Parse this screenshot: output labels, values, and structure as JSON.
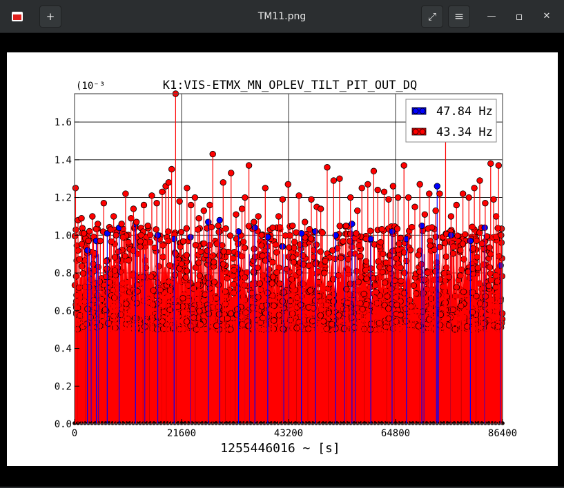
{
  "window": {
    "title": "TM11.png",
    "icons": {
      "app": "image-viewer-icon",
      "new": "plus-icon",
      "fullscreen": "fullscreen-icon",
      "menu": "hamburger-menu-icon",
      "minimize": "minimize-icon",
      "maximize": "maximize-icon",
      "close": "close-icon"
    },
    "glyphs": {
      "new": "+",
      "fullscreen": "⤢",
      "menu": "≡",
      "minimize": "—",
      "maximize": "▫",
      "close": "✕"
    }
  },
  "chart_data": {
    "type": "scatter",
    "title": "K1:VIS-ETMX_MN_OPLEV_TILT_PIT_OUT_DQ",
    "xlabel": "1255446016 ~ [s]",
    "ylabel": "",
    "y_scale_label": "(10⁻³",
    "xlim": [
      0,
      86400
    ],
    "ylim": [
      0,
      1.75
    ],
    "x_ticks": [
      0,
      21600,
      43200,
      64800,
      86400
    ],
    "x_tick_labels": [
      "0",
      "21600",
      "43200",
      "64800",
      "86400"
    ],
    "y_ticks": [
      0.0,
      0.2,
      0.4,
      0.6,
      0.8,
      1.0,
      1.2,
      1.4,
      1.6
    ],
    "y_tick_labels": [
      "0.0",
      "0.2",
      "0.4",
      "0.6",
      "0.8",
      "1.0",
      "1.2",
      "1.4",
      "1.6"
    ],
    "grid": true,
    "legend_position": "top-right",
    "marker_style": "stem",
    "series": [
      {
        "name": "47.84 Hz",
        "color": "#0000ff",
        "points": [
          [
            2600,
            0.92
          ],
          [
            4400,
            0.97
          ],
          [
            6600,
            1.01
          ],
          [
            9000,
            1.04
          ],
          [
            12300,
            1.06
          ],
          [
            16800,
            1.0
          ],
          [
            20100,
            0.98
          ],
          [
            23400,
            0.99
          ],
          [
            27000,
            1.07
          ],
          [
            29300,
            1.08
          ],
          [
            33100,
            1.02
          ],
          [
            36400,
            1.04
          ],
          [
            39000,
            0.99
          ],
          [
            42000,
            0.94
          ],
          [
            45800,
            1.01
          ],
          [
            48600,
            1.02
          ],
          [
            52700,
            1.0
          ],
          [
            56000,
            1.06
          ],
          [
            59800,
            0.98
          ],
          [
            64100,
            1.02
          ],
          [
            67000,
            0.98
          ],
          [
            70100,
            1.05
          ],
          [
            73200,
            1.26
          ],
          [
            76000,
            1.0
          ],
          [
            79900,
            0.97
          ],
          [
            82800,
            1.04
          ],
          [
            86000,
            0.84
          ]
        ]
      },
      {
        "name": "43.34 Hz",
        "color": "#ff0000",
        "points": [
          [
            200,
            1.25
          ],
          [
            700,
            1.08
          ],
          [
            1400,
            1.09
          ],
          [
            1900,
            1.01
          ],
          [
            2800,
            0.97
          ],
          [
            3600,
            1.1
          ],
          [
            4700,
            1.06
          ],
          [
            5200,
            0.97
          ],
          [
            5900,
            1.17
          ],
          [
            7300,
            1.03
          ],
          [
            7900,
            1.1
          ],
          [
            8400,
            1.0
          ],
          [
            9500,
            1.06
          ],
          [
            10300,
            1.22
          ],
          [
            11400,
            1.09
          ],
          [
            11900,
            1.14
          ],
          [
            12500,
            1.07
          ],
          [
            13400,
            1.0
          ],
          [
            14000,
            1.16
          ],
          [
            14800,
            1.05
          ],
          [
            15600,
            1.21
          ],
          [
            16600,
            1.17
          ],
          [
            17700,
            1.23
          ],
          [
            18400,
            1.26
          ],
          [
            19000,
            1.28
          ],
          [
            19600,
            1.35
          ],
          [
            20400,
            1.75
          ],
          [
            21200,
            1.18
          ],
          [
            22700,
            1.25
          ],
          [
            23500,
            1.16
          ],
          [
            24300,
            1.2
          ],
          [
            25100,
            1.09
          ],
          [
            26100,
            1.13
          ],
          [
            27300,
            1.16
          ],
          [
            27900,
            1.43
          ],
          [
            29000,
            1.05
          ],
          [
            30000,
            1.28
          ],
          [
            31600,
            1.33
          ],
          [
            32600,
            1.11
          ],
          [
            33800,
            1.14
          ],
          [
            34400,
            1.2
          ],
          [
            35200,
            1.37
          ],
          [
            36200,
            1.07
          ],
          [
            37100,
            1.1
          ],
          [
            38500,
            1.25
          ],
          [
            40000,
            1.04
          ],
          [
            41200,
            1.1
          ],
          [
            42000,
            1.19
          ],
          [
            43100,
            1.27
          ],
          [
            44000,
            1.05
          ],
          [
            45300,
            1.21
          ],
          [
            46500,
            1.07
          ],
          [
            47800,
            1.19
          ],
          [
            48900,
            1.15
          ],
          [
            49700,
            1.14
          ],
          [
            51000,
            1.36
          ],
          [
            52300,
            1.29
          ],
          [
            53500,
            1.3
          ],
          [
            54800,
            1.05
          ],
          [
            55700,
            1.2
          ],
          [
            57100,
            1.13
          ],
          [
            58000,
            1.25
          ],
          [
            59200,
            1.27
          ],
          [
            60400,
            1.34
          ],
          [
            61200,
            1.24
          ],
          [
            62500,
            1.23
          ],
          [
            63400,
            1.19
          ],
          [
            64300,
            1.26
          ],
          [
            65300,
            1.2
          ],
          [
            66500,
            1.37
          ],
          [
            67400,
            1.2
          ],
          [
            68700,
            1.15
          ],
          [
            69700,
            1.27
          ],
          [
            70700,
            1.11
          ],
          [
            71600,
            1.22
          ],
          [
            72900,
            1.13
          ],
          [
            73700,
            1.22
          ],
          [
            74900,
            1.54
          ],
          [
            76000,
            1.1
          ],
          [
            77100,
            1.16
          ],
          [
            78400,
            1.22
          ],
          [
            79600,
            1.2
          ],
          [
            80700,
            1.25
          ],
          [
            81800,
            1.29
          ],
          [
            82900,
            1.17
          ],
          [
            84000,
            1.38
          ],
          [
            84600,
            1.19
          ],
          [
            85100,
            1.1
          ],
          [
            85600,
            1.37
          ],
          [
            86100,
            1.0
          ]
        ]
      }
    ]
  }
}
